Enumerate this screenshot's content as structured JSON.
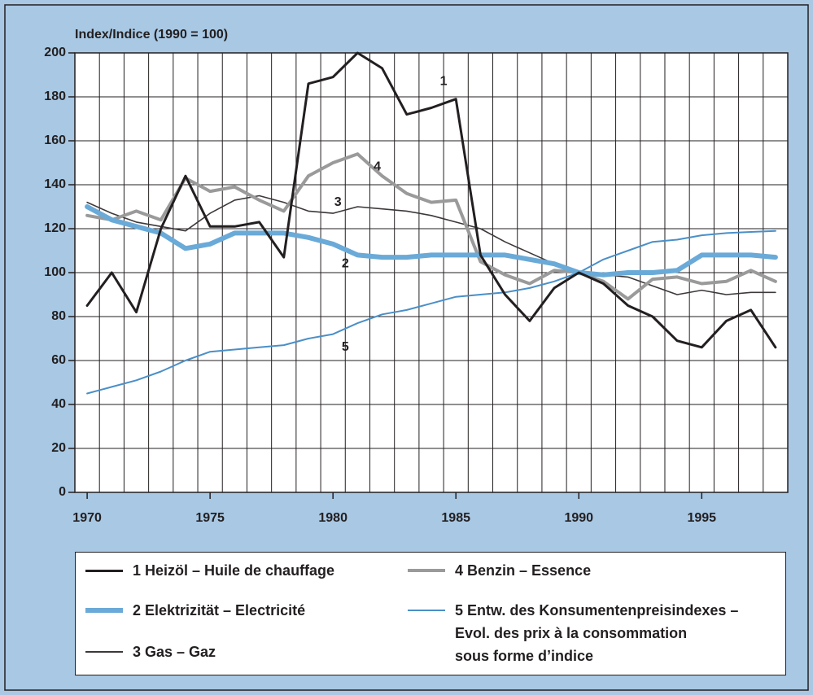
{
  "chart_data": {
    "type": "line",
    "ylabel": "Index/Indice (1990 = 100)",
    "x": [
      1970,
      1971,
      1972,
      1973,
      1974,
      1975,
      1976,
      1977,
      1978,
      1979,
      1980,
      1981,
      1982,
      1983,
      1984,
      1985,
      1986,
      1987,
      1988,
      1989,
      1990,
      1991,
      1992,
      1993,
      1994,
      1995,
      1996,
      1997,
      1998
    ],
    "xlim": [
      1969.5,
      1998.5
    ],
    "xticks": [
      1970,
      1975,
      1980,
      1985,
      1990,
      1995
    ],
    "ylim": [
      0,
      200
    ],
    "yticks": [
      0,
      20,
      40,
      60,
      80,
      100,
      120,
      140,
      160,
      180,
      200
    ],
    "grid": true,
    "series": [
      {
        "name": "1 Heizöl – Huile de chauffage",
        "color": "#231f20",
        "values": [
          85,
          100,
          82,
          120,
          144,
          121,
          121,
          123,
          107,
          186,
          189,
          200,
          193,
          172,
          175,
          179,
          108,
          90,
          78,
          93,
          100,
          95,
          85,
          80,
          69,
          66,
          78,
          83,
          66
        ]
      },
      {
        "name": "2 Elektrizität – Electricité",
        "color": "#6aaad8",
        "values": [
          130,
          124,
          121,
          118,
          111,
          113,
          118,
          118,
          118,
          116,
          113,
          108,
          107,
          107,
          108,
          108,
          108,
          108,
          106,
          104,
          100,
          99,
          100,
          100,
          101,
          108,
          108,
          108,
          107
        ]
      },
      {
        "name": "3 Gas – Gaz",
        "color": "#3d3839",
        "values": [
          132,
          127,
          123,
          121,
          119,
          127,
          133,
          135,
          132,
          128,
          127,
          130,
          129,
          128,
          126,
          123,
          120,
          114,
          109,
          104,
          100,
          99,
          98,
          94,
          90,
          92,
          90,
          91,
          91
        ]
      },
      {
        "name": "4 Benzin – Essence",
        "color": "#9a9a9a",
        "values": [
          126,
          124,
          128,
          124,
          143,
          137,
          139,
          133,
          128,
          144,
          150,
          154,
          144,
          136,
          132,
          133,
          105,
          99,
          95,
          101,
          100,
          96,
          88,
          97,
          98,
          95,
          96,
          101,
          96
        ]
      },
      {
        "name": "5 Entw. des Konsumentenpreisindexes –\nEvol. des prix à la consommation\nsous forme d’indice",
        "color": "#4a8fc8",
        "values": [
          45,
          48,
          51,
          55,
          60,
          64,
          65,
          66,
          67,
          70,
          72,
          77,
          81,
          83,
          86,
          89,
          90,
          91,
          93,
          96,
          100,
          106,
          110,
          114,
          115,
          117,
          118,
          118.5,
          119
        ]
      }
    ],
    "annotations": [
      "1",
      "4",
      "3",
      "2",
      "5"
    ]
  }
}
